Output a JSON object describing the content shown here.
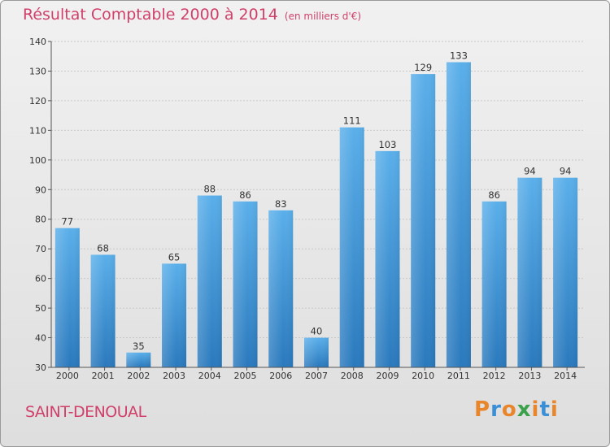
{
  "chart_data": {
    "type": "bar",
    "title": "Résultat Comptable 2000 à 2014",
    "subtitle": "(en milliers d'€)",
    "categories": [
      "2000",
      "2001",
      "2002",
      "2003",
      "2004",
      "2005",
      "2006",
      "2007",
      "2008",
      "2009",
      "2010",
      "2011",
      "2012",
      "2013",
      "2014"
    ],
    "values": [
      77,
      68,
      35,
      65,
      88,
      86,
      83,
      40,
      111,
      103,
      129,
      133,
      86,
      94,
      94
    ],
    "ylim": [
      30,
      140
    ],
    "yticks": [
      30,
      40,
      50,
      60,
      70,
      80,
      90,
      100,
      110,
      120,
      130,
      140
    ],
    "xlabel": "",
    "ylabel": "",
    "grid": true,
    "bar_color": "#3a8fd6"
  },
  "footer": {
    "commune": "SAINT-DENOUAL",
    "logo_text": "Proxiti",
    "logo_colors": [
      "#e9862b",
      "#3a8fd6",
      "#e9862b",
      "#3aa24a",
      "#e9862b",
      "#3a8fd6",
      "#e9862b"
    ]
  },
  "colors": {
    "accent": "#d0406a"
  }
}
